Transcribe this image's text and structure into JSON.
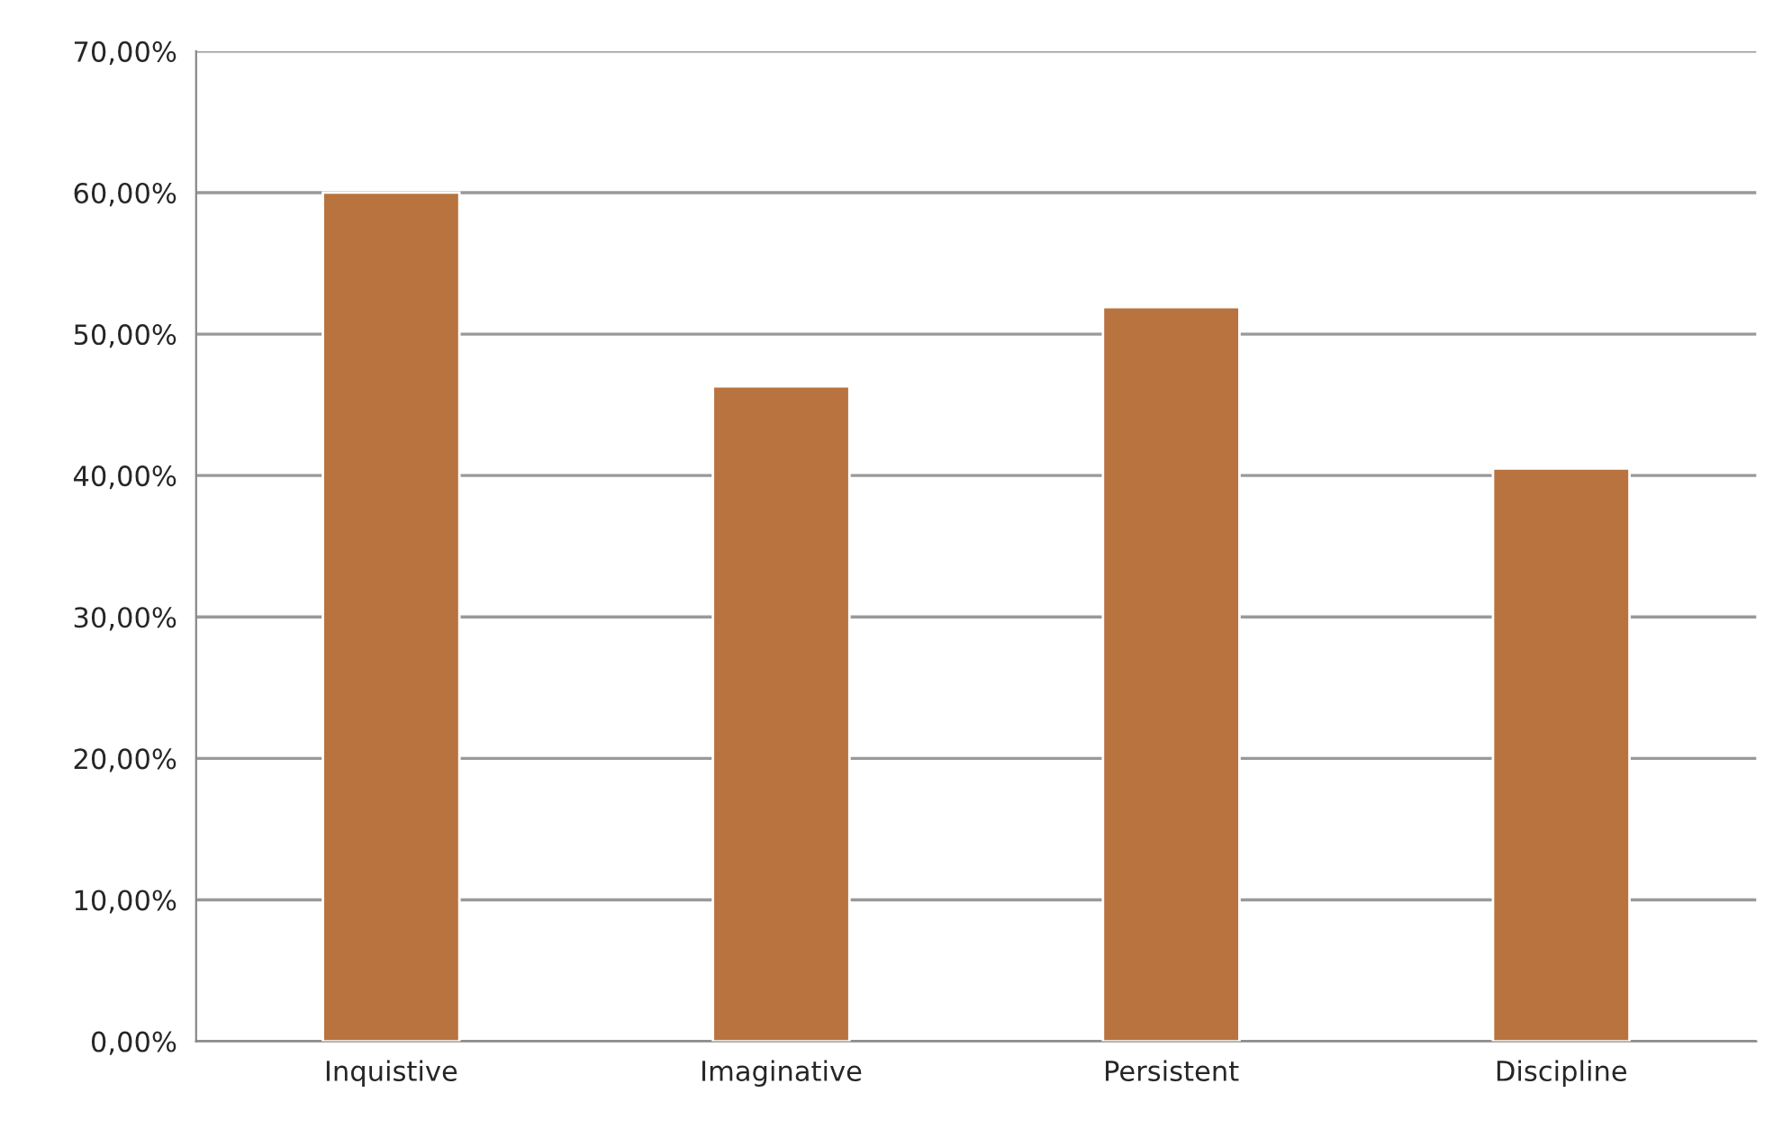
{
  "chart_data": {
    "type": "bar",
    "categories": [
      "Inquistive",
      "Imaginative",
      "Persistent",
      "Discipline"
    ],
    "values": [
      60,
      46.3,
      51.9,
      40.5
    ],
    "color": "#b9733f",
    "ylim": [
      0,
      70
    ],
    "yticks": [
      {
        "value": 0,
        "label": "0,00%"
      },
      {
        "value": 10,
        "label": "10,00%"
      },
      {
        "value": 20,
        "label": "20,00%"
      },
      {
        "value": 30,
        "label": "30,00%"
      },
      {
        "value": 40,
        "label": "40,00%"
      },
      {
        "value": 50,
        "label": "50,00%"
      },
      {
        "value": 60,
        "label": "60,00%"
      },
      {
        "value": 70,
        "label": "70,00%"
      }
    ],
    "grid": "y"
  }
}
